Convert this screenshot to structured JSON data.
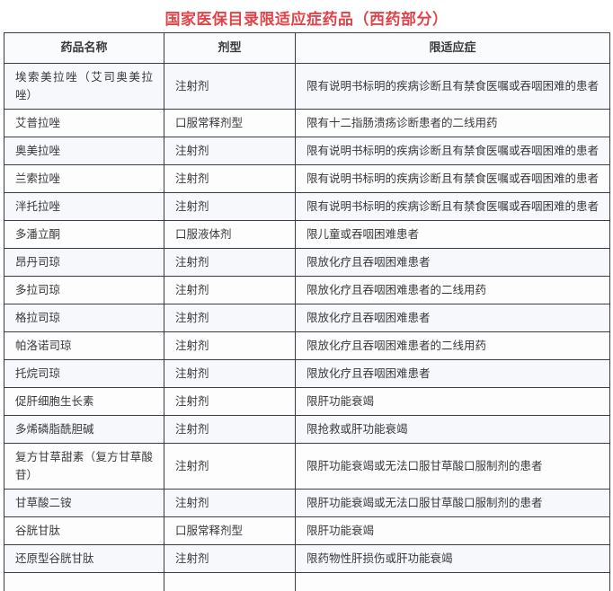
{
  "title": "国家医保目录限适应症药品（西药部分）",
  "colors": {
    "title_red": "#e0444a",
    "table_border": "#3a3d43",
    "row_odd_bg": "#f6f8fb",
    "row_even_bg": "#fdfdfd",
    "header_bg": "#fafbfc",
    "text": "#38393d"
  },
  "table": {
    "headers": [
      "药品名称",
      "剂型",
      "限适应症"
    ],
    "rows": [
      [
        "埃索美拉唑（艾司奥美拉唑）",
        "注射剂",
        "限有说明书标明的疾病诊断且有禁食医嘱或吞咽困难的患者"
      ],
      [
        "艾普拉唑",
        "口服常释剂型",
        "限有十二指肠溃疡诊断患者的二线用药"
      ],
      [
        "奥美拉唑",
        "注射剂",
        "限有说明书标明的疾病诊断且有禁食医嘱或吞咽困难的患者"
      ],
      [
        "兰索拉唑",
        "注射剂",
        "限有说明书标明的疾病诊断且有禁食医嘱或吞咽困难的患者"
      ],
      [
        "泮托拉唑",
        "注射剂",
        "限有说明书标明的疾病诊断且有禁食医嘱或吞咽困难的患者"
      ],
      [
        "多潘立酮",
        "口服液体剂",
        "限儿童或吞咽困难患者"
      ],
      [
        "昂丹司琼",
        "注射剂",
        "限放化疗且吞咽困难患者"
      ],
      [
        "多拉司琼",
        "注射剂",
        "限放化疗且吞咽困难患者的二线用药"
      ],
      [
        "格拉司琼",
        "注射剂",
        "限放化疗且吞咽困难患者"
      ],
      [
        "帕洛诺司琼",
        "注射剂",
        "限放化疗且吞咽困难患者的二线用药"
      ],
      [
        "托烷司琼",
        "注射剂",
        "限放化疗且吞咽困难患者"
      ],
      [
        "促肝细胞生长素",
        "注射剂",
        "限肝功能衰竭"
      ],
      [
        "多烯磷脂酰胆碱",
        "注射剂",
        "限抢救或肝功能衰竭"
      ],
      [
        "复方甘草甜素（复方甘草酸苷）",
        "注射剂",
        "限肝功能衰竭或无法口服甘草酸口服制剂的患者"
      ],
      [
        "甘草酸二铵",
        "注射剂",
        "限肝功能衰竭或无法口服甘草酸口服制剂的患者"
      ],
      [
        "谷胱甘肽",
        "口服常释剂型",
        "限肝功能衰竭"
      ],
      [
        "还原型谷胱甘肽",
        "注射剂",
        "限药物性肝损伤或肝功能衰竭"
      ],
      [
        "",
        "",
        ""
      ]
    ]
  }
}
